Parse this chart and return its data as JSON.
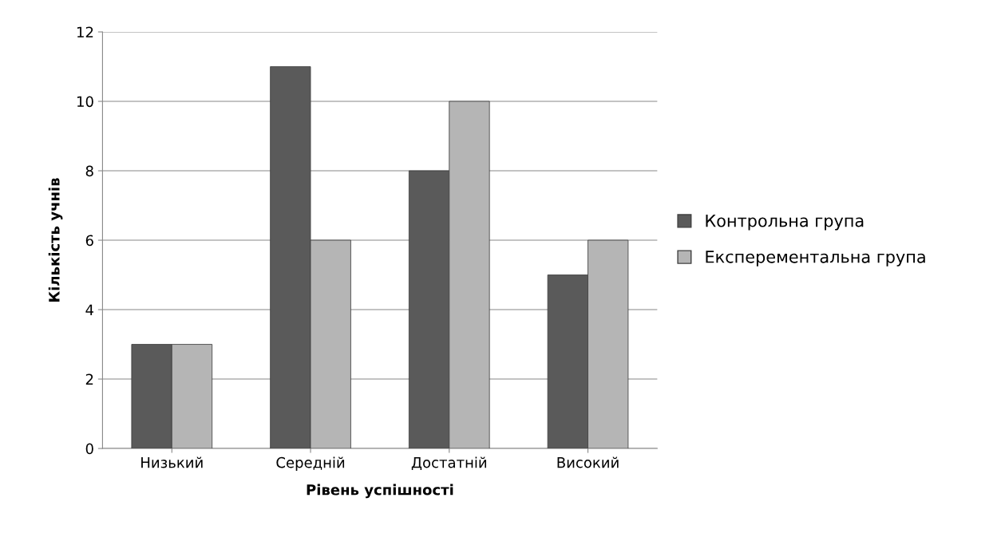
{
  "chart_data": {
    "type": "bar",
    "xlabel": "Рівень успішності",
    "ylabel": "Кількість учнів",
    "categories": [
      "Низький",
      "Середній",
      "Достатній",
      "Високий"
    ],
    "series": [
      {
        "name": "Контрольна група",
        "color": "#5a5a5a",
        "values": [
          3,
          11,
          8,
          5
        ]
      },
      {
        "name": "Експерементальна група",
        "color": "#b5b5b5",
        "values": [
          3,
          6,
          10,
          6
        ]
      }
    ],
    "ylim": [
      0,
      12
    ],
    "yticks": [
      0,
      2,
      4,
      6,
      8,
      10,
      12
    ],
    "grid": "y",
    "legend": "right"
  }
}
